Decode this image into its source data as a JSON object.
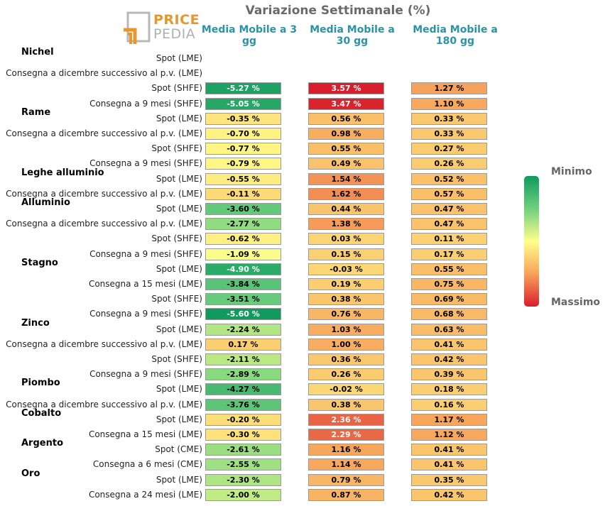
{
  "title": "Variazione Settimanale (%)",
  "logo": {
    "word1": "PRICE",
    "word2": "PEDIA"
  },
  "columns": [
    "Media Mobile a 3 gg",
    "Media Mobile a 30 gg",
    "Media Mobile a 180 gg"
  ],
  "legend": {
    "min": "Minimo",
    "max": "Massimo"
  },
  "colors": {
    "accent": "#2a93a6",
    "min": "#0f9a5e",
    "mid": "#ffff8a",
    "max": "#d81e2c"
  },
  "chart_data": {
    "type": "heatmap",
    "title": "Variazione Settimanale (%)",
    "columns": [
      "Media Mobile a 3 gg",
      "Media Mobile a 30 gg",
      "Media Mobile a 180 gg"
    ],
    "groups": [
      {
        "name": "Nichel",
        "rows": [
          {
            "label": "Spot (LME)",
            "values": [
              null,
              null,
              null
            ]
          },
          {
            "label": "Consegna a dicembre successivo al p.v. (LME)",
            "values": [
              null,
              null,
              null
            ]
          },
          {
            "label": "Spot (SHFE)",
            "values": [
              -5.27,
              3.57,
              1.27
            ]
          },
          {
            "label": "Consegna a 9 mesi (SHFE)",
            "values": [
              -5.05,
              3.47,
              1.1
            ]
          }
        ]
      },
      {
        "name": "Rame",
        "rows": [
          {
            "label": "Spot (LME)",
            "values": [
              -0.35,
              0.56,
              0.33
            ]
          },
          {
            "label": "Consegna a dicembre successivo al p.v. (LME)",
            "values": [
              -0.7,
              0.98,
              0.33
            ]
          },
          {
            "label": "Spot (SHFE)",
            "values": [
              -0.77,
              0.55,
              0.27
            ]
          },
          {
            "label": "Consegna a 9 mesi (SHFE)",
            "values": [
              -0.79,
              0.49,
              0.26
            ]
          }
        ]
      },
      {
        "name": "Leghe alluminio",
        "rows": [
          {
            "label": "Spot (LME)",
            "values": [
              -0.55,
              1.54,
              0.52
            ]
          },
          {
            "label": "Consegna a dicembre successivo al p.v. (LME)",
            "values": [
              -0.11,
              1.62,
              0.57
            ]
          }
        ]
      },
      {
        "name": "Alluminio",
        "rows": [
          {
            "label": "Spot (LME)",
            "values": [
              -3.6,
              0.44,
              0.47
            ]
          },
          {
            "label": "Consegna a dicembre successivo al p.v. (LME)",
            "values": [
              -2.77,
              1.38,
              0.47
            ]
          },
          {
            "label": "Spot (SHFE)",
            "values": [
              -0.62,
              0.03,
              0.11
            ]
          },
          {
            "label": "Consegna a 9 mesi (SHFE)",
            "values": [
              -1.09,
              0.15,
              0.17
            ]
          }
        ]
      },
      {
        "name": "Stagno",
        "rows": [
          {
            "label": "Spot (LME)",
            "values": [
              -4.9,
              -0.03,
              0.55
            ]
          },
          {
            "label": "Consegna a 15 mesi (LME)",
            "values": [
              -3.84,
              0.19,
              0.75
            ]
          },
          {
            "label": "Spot (SHFE)",
            "values": [
              -3.51,
              0.38,
              0.69
            ]
          },
          {
            "label": "Consegna a 9 mesi (SHFE)",
            "values": [
              -5.6,
              0.76,
              0.68
            ]
          }
        ]
      },
      {
        "name": "Zinco",
        "rows": [
          {
            "label": "Spot (LME)",
            "values": [
              -2.24,
              1.03,
              0.63
            ]
          },
          {
            "label": "Consegna a dicembre successivo al p.v. (LME)",
            "values": [
              0.17,
              1.0,
              0.41
            ]
          },
          {
            "label": "Spot (SHFE)",
            "values": [
              -2.11,
              0.36,
              0.42
            ]
          },
          {
            "label": "Consegna a 9 mesi (SHFE)",
            "values": [
              -2.89,
              0.26,
              0.39
            ]
          }
        ]
      },
      {
        "name": "Piombo",
        "rows": [
          {
            "label": "Spot (LME)",
            "values": [
              -4.27,
              -0.02,
              0.18
            ]
          },
          {
            "label": "Consegna a dicembre successivo al p.v. (LME)",
            "values": [
              -3.76,
              0.38,
              0.16
            ]
          }
        ]
      },
      {
        "name": "Cobalto",
        "rows": [
          {
            "label": "Spot (LME)",
            "values": [
              -0.2,
              2.36,
              1.17
            ]
          },
          {
            "label": "Consegna a 15 mesi (LME)",
            "values": [
              -0.3,
              2.29,
              1.12
            ]
          }
        ]
      },
      {
        "name": "Argento",
        "rows": [
          {
            "label": "Spot (CME)",
            "values": [
              -2.61,
              1.16,
              0.41
            ]
          },
          {
            "label": "Consegna a 6 mesi (CME)",
            "values": [
              -2.55,
              1.14,
              0.41
            ]
          }
        ]
      },
      {
        "name": "Oro",
        "rows": [
          {
            "label": "Spot (LME)",
            "values": [
              -2.3,
              0.79,
              0.35
            ]
          },
          {
            "label": "Consegna a 24 mesi (LME)",
            "values": [
              -2.0,
              0.87,
              0.42
            ]
          }
        ]
      }
    ]
  }
}
